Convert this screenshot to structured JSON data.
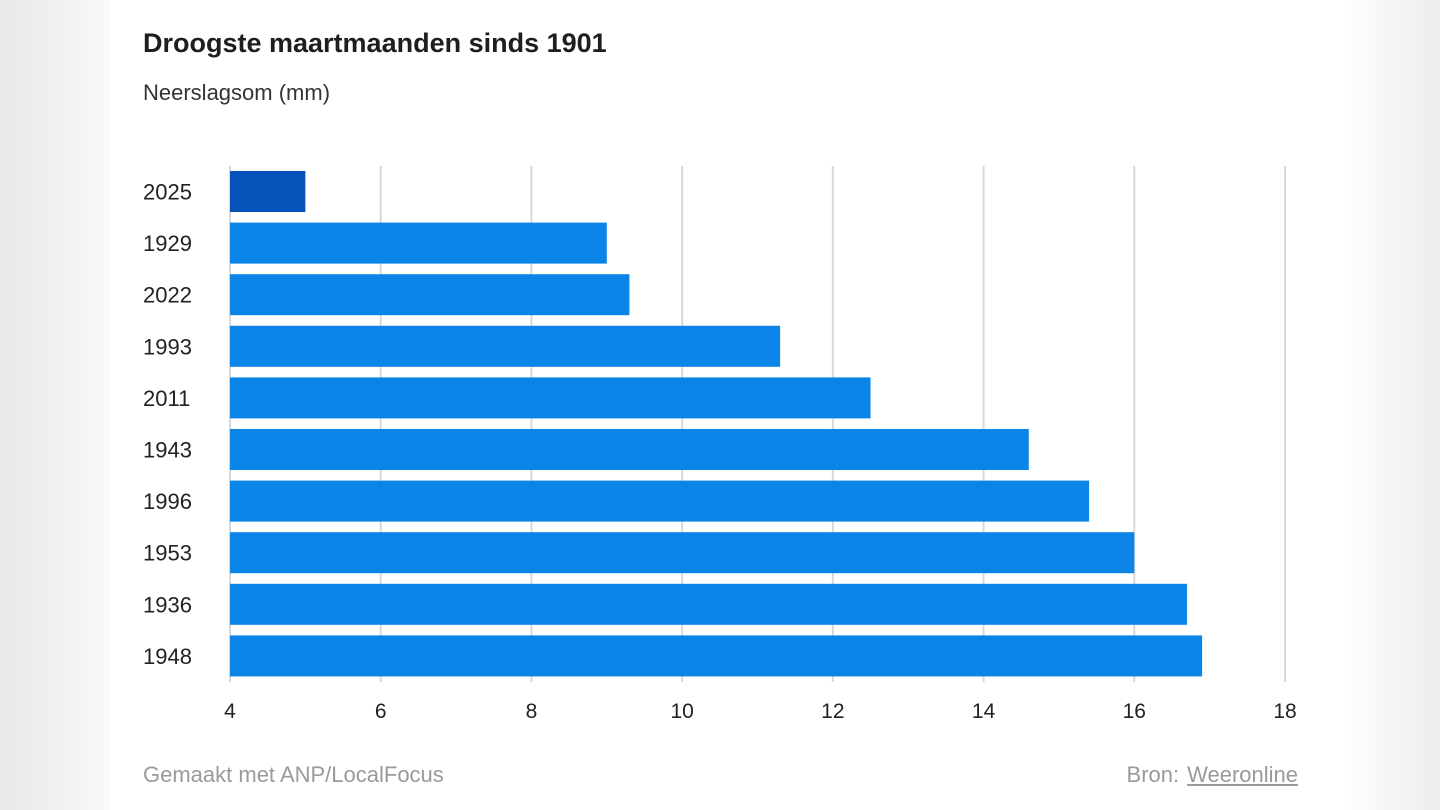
{
  "header": {
    "title": "Droogste maartmaanden sinds 1901",
    "subtitle": "Neerslagsom (mm)"
  },
  "footer": {
    "credit": "Gemaakt met ANP/LocalFocus",
    "source_label": "Bron:",
    "source_link": "Weeronline"
  },
  "colors": {
    "bar": "#0a84e6",
    "bar_highlight": "#0552b8",
    "grid": "#d9d9d9",
    "axis_text": "#222222"
  },
  "chart_data": {
    "type": "bar",
    "orientation": "horizontal",
    "title": "Droogste maartmaanden sinds 1901",
    "subtitle": "Neerslagsom (mm)",
    "categories": [
      "2025",
      "1929",
      "2022",
      "1993",
      "2011",
      "1943",
      "1996",
      "1953",
      "1936",
      "1948"
    ],
    "values": [
      5.0,
      9.0,
      9.3,
      11.3,
      12.5,
      14.6,
      15.4,
      16.0,
      16.7,
      16.9
    ],
    "highlight_category": "2025",
    "xlim": [
      4,
      18
    ],
    "xticks": [
      4,
      6,
      8,
      10,
      12,
      14,
      16,
      18
    ],
    "grid": "vertical",
    "legend": "none"
  }
}
